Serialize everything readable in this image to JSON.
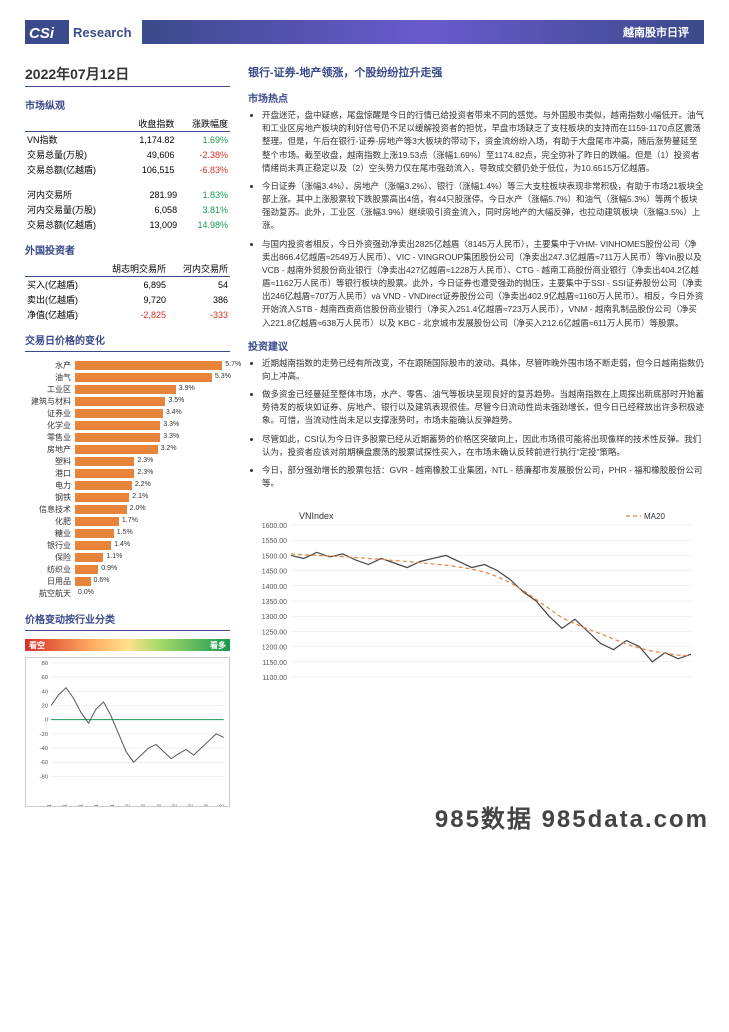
{
  "header": {
    "logo_text": "Research",
    "banner_title": "越南股市日评"
  },
  "date": "2022年07月12日",
  "market_overview": {
    "title": "市场纵观",
    "cols": [
      "",
      "收盘指数",
      "涨跌幅度"
    ],
    "rows": [
      {
        "label": "VN指数",
        "close": "1,174.82",
        "chg": "1.69%",
        "chg_cls": "pos"
      },
      {
        "label": "交易总量(万股)",
        "close": "49,606",
        "chg": "-2.38%",
        "chg_cls": "neg"
      },
      {
        "label": "交易总额(亿越盾)",
        "close": "106,515",
        "chg": "-6.83%",
        "chg_cls": "neg"
      }
    ]
  },
  "hanoi": {
    "rows": [
      {
        "label": "河内交易所",
        "close": "281.99",
        "chg": "1.83%",
        "chg_cls": "pos"
      },
      {
        "label": "河内交易量(万股)",
        "close": "6,058",
        "chg": "3.81%",
        "chg_cls": "pos"
      },
      {
        "label": "交易总额(亿越盾)",
        "close": "13,009",
        "chg": "14.98%",
        "chg_cls": "pos"
      }
    ]
  },
  "foreign_investor": {
    "title": "外国投资者",
    "cols": [
      "",
      "胡志明交易所",
      "河内交易所"
    ],
    "rows": [
      {
        "label": "买入(亿越盾)",
        "a": "6,895",
        "b": "54"
      },
      {
        "label": "卖出(亿越盾)",
        "a": "9,720",
        "b": "386"
      },
      {
        "label": "净值(亿越盾)",
        "a": "-2,825",
        "b": "-333",
        "a_cls": "neg",
        "b_cls": "neg"
      }
    ]
  },
  "sector_change": {
    "title": "交易日价格的变化",
    "max_pct": 6.0,
    "items": [
      {
        "name": "水产",
        "pct": 5.7
      },
      {
        "name": "油气",
        "pct": 5.3
      },
      {
        "name": "工业区",
        "pct": 3.9
      },
      {
        "name": "建筑与材料",
        "pct": 3.5
      },
      {
        "name": "证券业",
        "pct": 3.4
      },
      {
        "name": "化学业",
        "pct": 3.3
      },
      {
        "name": "零售业",
        "pct": 3.3
      },
      {
        "name": "房地产",
        "pct": 3.2
      },
      {
        "name": "塑料",
        "pct": 2.3
      },
      {
        "name": "港口",
        "pct": 2.3
      },
      {
        "name": "电力",
        "pct": 2.2
      },
      {
        "name": "钢铁",
        "pct": 2.1
      },
      {
        "name": "信息技术",
        "pct": 2.0
      },
      {
        "name": "化肥",
        "pct": 1.7
      },
      {
        "name": "糖业",
        "pct": 1.5
      },
      {
        "name": "银行业",
        "pct": 1.4
      },
      {
        "name": "保险",
        "pct": 1.1
      },
      {
        "name": "纺织业",
        "pct": 0.9
      },
      {
        "name": "日用品",
        "pct": 0.6
      },
      {
        "name": "航空航天",
        "pct": 0.0
      }
    ],
    "bar_color": "#e8833a"
  },
  "sentiment": {
    "title": "价格变动按行业分类",
    "left": "看空",
    "right": "看多"
  },
  "small_line_chart": {
    "type": "line",
    "x_labels": [
      "Aug-21",
      "Sep-21",
      "Oct-21",
      "Nov-21",
      "Dec-21",
      "Jan-22",
      "Feb-22",
      "Mar-22",
      "Apr-22",
      "May-22",
      "Jun-22",
      "Jul-22"
    ],
    "ylim": [
      -80,
      80
    ],
    "yticks": [
      -80,
      -60,
      -40,
      -20,
      0,
      20,
      40,
      60,
      80
    ],
    "line_color": "#555555",
    "zero_line_color": "#1a9850",
    "background_color": "#ffffff",
    "grid_color": "#e0e0e0",
    "values": [
      20,
      35,
      45,
      30,
      10,
      -5,
      15,
      25,
      5,
      -20,
      -45,
      -60,
      -50,
      -40,
      -35,
      -45,
      -55,
      -48,
      -42,
      -50,
      -40,
      -30,
      -20,
      -25
    ]
  },
  "article": {
    "headline": "银行-证券-地产领涨，个股纷纷拉升走强",
    "hot_title": "市场热点",
    "hot_bullets": [
      "开盘迷茫，盘中疑惑，尾盘惊醒是今日的行情已给投资者带来不同的感觉。与外国股市类似，越南指数小幅低开。油气和工业区房地产板块的利好信号仍不足以缓解投资者的担忧，早盘市场缺乏了支柱板块的支持而在1159-1170点区震荡整理。但是，午后在银行-证券-房地产等3大板块的带动下，资金流纷纷入场，有助于大盘尾市冲高，随后涨势蔓延至整个市场。截至收盘，越南指数上涨19.53点（涨幅1.69%）至1174.82点，完全弥补了昨日的跌幅。但是（1）投资者情绪尚未真正稳定以及（2）空头势力仅在尾市强劲流入，导致成交额仍处于低位，为10.6515万亿越盾。",
      "今日证券（涨幅3.4%）、房地产（涨幅3.2%）、银行（涨幅1.4%）等三大支柱板块表现非常积极，有助于市场21板块全部上涨。其中上涨股票较下跌股票高出4倍，有44只股涨停。今日水产（涨幅5.7%）和油气（涨幅5.3%）等两个板块强劲复苏。此外，工业区（涨幅3.9%）继续吸引资金流入，同时房地产的大幅反弹，也拉动建筑板块（涨幅3.5%）上涨。",
      "与国内投资者相反，今日外资强劲净卖出2825亿越盾（8145万人民币），主要集中于VHM- VINHOMES股份公司（净卖出866.4亿越盾≈2549万人民币）、VIC - VINGROUP集团股份公司（净卖出247.3亿越盾≈711万人民币）等Vin股以及VCB - 越南外贸股份商业银行（净卖出427亿越盾≈1228万人民币）、CTG - 越南工商股份商业银行（净卖出404.2亿越盾≈1162万人民币）等银行板块的股票。此外，今日证券也遭受强劲的抛压，主要集中于SSI - SSI证券股份公司（净卖出246亿越盾≈707万人民币）và VND - VNDirect证券股份公司（净卖出402.9亿越盾≈1160万人民币）。相反，今日外资开始流入STB - 越南西贡商信股份商业银行（净买入251.4亿越盾≈723万人民币），VNM - 越南乳制品股份公司（净买入221.8亿越盾≈638万人民币）以及 KBC - 北京城市发展股份公司（净买入212.6亿越盾≈611万人民币）等股票。"
    ],
    "advice_title": "投资建议",
    "advice_bullets": [
      "近期越南指数的走势已经有所改变，不在跟随国际股市的波动。具体，尽管昨晚外围市场不断走弱，但今日越南指数仍向上冲高。",
      "做多资金已经蔓延至整体市场，水产、零售、油气等板块呈现良好的复苏趋势。当越南指数在上周探出新底部时开始蓄势待发的板块如证券、房地产、银行以及建筑表现很佳。尽管今日流动性尚未强劲增长，但今日已经释放出许多积极迹象。可惜，当流动性尚未足以支撑涨势时，市场未能确认反弹趋势。",
      "尽管如此，CSI认为今日许多股票已经从近期蓄势的价格区突破向上，因此市场很可能将出现像样的技术性反弹。我们认为，投资者应该对前期横盘震荡的股票试探性买入，在市场未确认反转前进行执行\"定投\"策略。",
      "今日，部分强劲增长的股票包括：GVR - 越南橡胶工业集团，NTL - 慈廉都市发展股份公司，PHR - 福和橡胶股份公司等。"
    ]
  },
  "big_chart": {
    "type": "line",
    "title": "VNIndex",
    "legend": [
      "VNIndex",
      "MA20"
    ],
    "ylim": [
      1100,
      1600
    ],
    "yticks": [
      1100,
      1150,
      1200,
      1250,
      1300,
      1350,
      1400,
      1450,
      1500,
      1550,
      1600
    ],
    "grid_color": "#e0e0e0",
    "background_color": "#ffffff",
    "vnindex_color": "#444444",
    "ma20_color": "#e8833a",
    "ma20_dash": "4,3",
    "vnindex_points": [
      1500,
      1490,
      1510,
      1495,
      1505,
      1485,
      1470,
      1490,
      1475,
      1460,
      1480,
      1490,
      1500,
      1480,
      1460,
      1470,
      1450,
      1420,
      1380,
      1350,
      1300,
      1260,
      1290,
      1250,
      1210,
      1190,
      1220,
      1200,
      1150,
      1180,
      1160,
      1175
    ],
    "ma20_points": [
      1505,
      1502,
      1500,
      1498,
      1496,
      1493,
      1490,
      1487,
      1483,
      1480,
      1476,
      1472,
      1468,
      1462,
      1455,
      1445,
      1430,
      1410,
      1385,
      1355,
      1325,
      1295,
      1275,
      1258,
      1242,
      1225,
      1208,
      1195,
      1185,
      1178,
      1172,
      1170
    ]
  },
  "footer_brand": "985数据 985data.com"
}
